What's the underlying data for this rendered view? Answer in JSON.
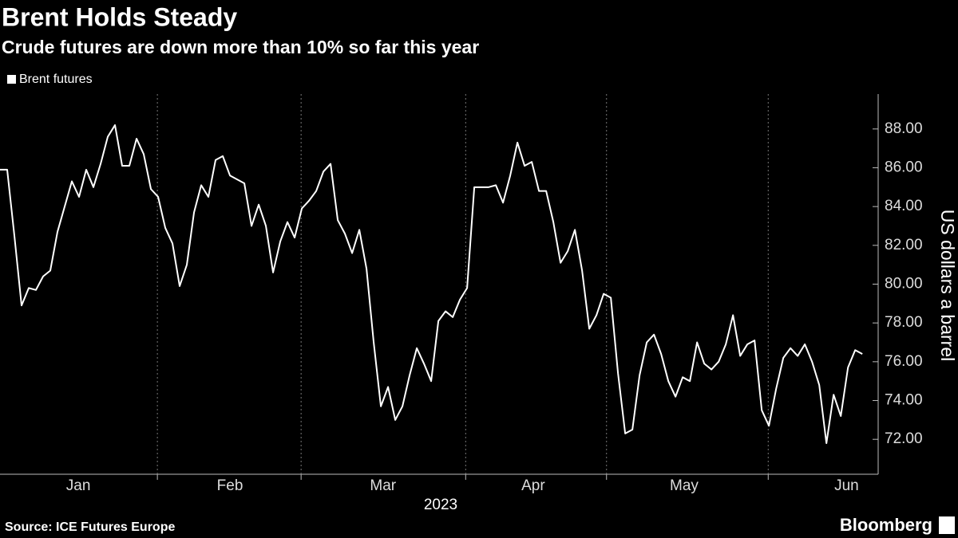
{
  "chart_data": {
    "type": "line",
    "title": "Brent Holds Steady",
    "subtitle": "Crude futures are down more than 10% so far this year",
    "source": "Source: ICE Futures Europe",
    "brand": "Bloomberg",
    "y_axis_label": "US dollars a barrel",
    "x_axis_label": "2023",
    "series": [
      {
        "name": "Brent futures",
        "color": "#ffffff",
        "values": [
          85.9,
          85.9,
          82.5,
          78.9,
          79.8,
          79.7,
          80.4,
          80.7,
          82.7,
          84.0,
          85.3,
          84.5,
          85.9,
          85.0,
          86.2,
          87.6,
          88.2,
          86.1,
          86.1,
          87.5,
          86.7,
          84.9,
          84.5,
          82.9,
          82.1,
          79.9,
          81.0,
          83.7,
          85.1,
          84.5,
          86.4,
          86.6,
          85.6,
          85.4,
          85.2,
          83.0,
          84.1,
          83.0,
          80.6,
          82.2,
          83.2,
          82.4,
          83.9,
          84.3,
          84.8,
          85.8,
          86.2,
          83.3,
          82.6,
          81.6,
          82.8,
          80.8,
          77.0,
          73.7,
          74.7,
          73.0,
          73.7,
          75.3,
          76.7,
          75.9,
          75.0,
          78.1,
          78.6,
          78.3,
          79.2,
          79.8,
          85.0,
          85.0,
          85.0,
          85.1,
          84.2,
          85.6,
          87.3,
          86.1,
          86.3,
          84.8,
          84.8,
          83.2,
          81.1,
          81.7,
          82.8,
          80.7,
          77.7,
          78.4,
          79.5,
          79.3,
          75.4,
          72.3,
          72.5,
          75.3,
          77.0,
          77.4,
          76.4,
          75.0,
          74.2,
          75.2,
          75.0,
          77.0,
          75.9,
          75.6,
          76.0,
          76.9,
          78.4,
          76.3,
          76.9,
          77.1,
          73.5,
          72.7,
          74.6,
          76.2,
          76.7,
          76.3,
          76.9,
          76.0,
          74.8,
          71.8,
          74.3,
          73.2,
          75.7,
          76.6,
          76.4
        ]
      }
    ],
    "xlim": [
      0,
      122.2
    ],
    "xticks": [
      21.9,
      41.9,
      64.8,
      84.4,
      106.9
    ],
    "month_labels": [
      {
        "value": 10.9,
        "label": "Jan"
      },
      {
        "value": 32,
        "label": "Feb"
      },
      {
        "value": 53.3,
        "label": "Mar"
      },
      {
        "value": 74.2,
        "label": "Apr"
      },
      {
        "value": 95.2,
        "label": "May"
      },
      {
        "value": 117.8,
        "label": "Jun"
      }
    ],
    "ylim": [
      70.2,
      89.8
    ],
    "yticks": [
      {
        "value": 72,
        "label": "72.00"
      },
      {
        "value": 74,
        "label": "74.00"
      },
      {
        "value": 76,
        "label": "76.00"
      },
      {
        "value": 78,
        "label": "78.00"
      },
      {
        "value": 80,
        "label": "80.00"
      },
      {
        "value": 82,
        "label": "82.00"
      },
      {
        "value": 84,
        "label": "84.00"
      },
      {
        "value": 86,
        "label": "86.00"
      },
      {
        "value": 88,
        "label": "88.00"
      }
    ],
    "y_axis_side": "right",
    "x_grid": true
  }
}
